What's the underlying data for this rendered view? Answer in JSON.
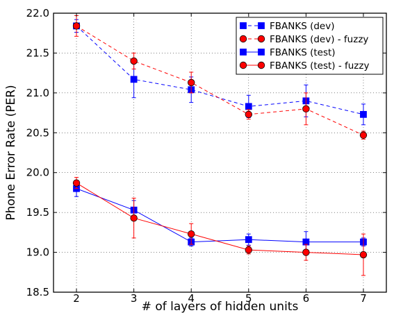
{
  "chart_data": {
    "type": "line",
    "xlabel": "# of layers of hidden units",
    "ylabel": "Phone Error Rate (PER)",
    "xlim": [
      1.6,
      7.4
    ],
    "ylim": [
      18.5,
      22.0
    ],
    "x_ticks": [
      2,
      3,
      4,
      5,
      6,
      7
    ],
    "y_ticks": [
      18.5,
      19.0,
      19.5,
      20.0,
      20.5,
      21.0,
      21.5,
      22.0
    ],
    "y_tick_labels": [
      "18.5",
      "19.0",
      "19.5",
      "20.0",
      "20.5",
      "21.0",
      "21.5",
      "22.0"
    ],
    "grid": true,
    "legend_position": "top-right",
    "x": [
      2,
      3,
      4,
      5,
      6,
      7
    ],
    "series": [
      {
        "name": "FBANKS (dev)",
        "color": "#0000ff",
        "marker": "square",
        "line_style": "dashed",
        "values": [
          21.84,
          21.17,
          21.04,
          20.83,
          20.9,
          20.73
        ],
        "errors": [
          0.08,
          0.23,
          0.16,
          0.14,
          0.2,
          0.13
        ]
      },
      {
        "name": "FBANKS (dev) - fuzzy",
        "color": "#ff0000",
        "marker": "circle",
        "line_style": "dashed",
        "values": [
          21.84,
          21.4,
          21.13,
          20.73,
          20.8,
          20.47
        ],
        "errors": [
          0.13,
          0.1,
          0.13,
          0.06,
          0.2,
          0.05
        ]
      },
      {
        "name": "FBANKS (test)",
        "color": "#0000ff",
        "marker": "square",
        "line_style": "solid",
        "values": [
          19.8,
          19.53,
          19.13,
          19.16,
          19.13,
          19.13
        ],
        "errors": [
          0.1,
          0.12,
          0.05,
          0.07,
          0.13,
          0.05
        ]
      },
      {
        "name": "FBANKS (test) - fuzzy",
        "color": "#ff0000",
        "marker": "circle",
        "line_style": "solid",
        "values": [
          19.87,
          19.43,
          19.23,
          19.03,
          19.0,
          18.97
        ],
        "errors": [
          0.07,
          0.25,
          0.13,
          0.05,
          0.1,
          0.26
        ]
      }
    ]
  }
}
